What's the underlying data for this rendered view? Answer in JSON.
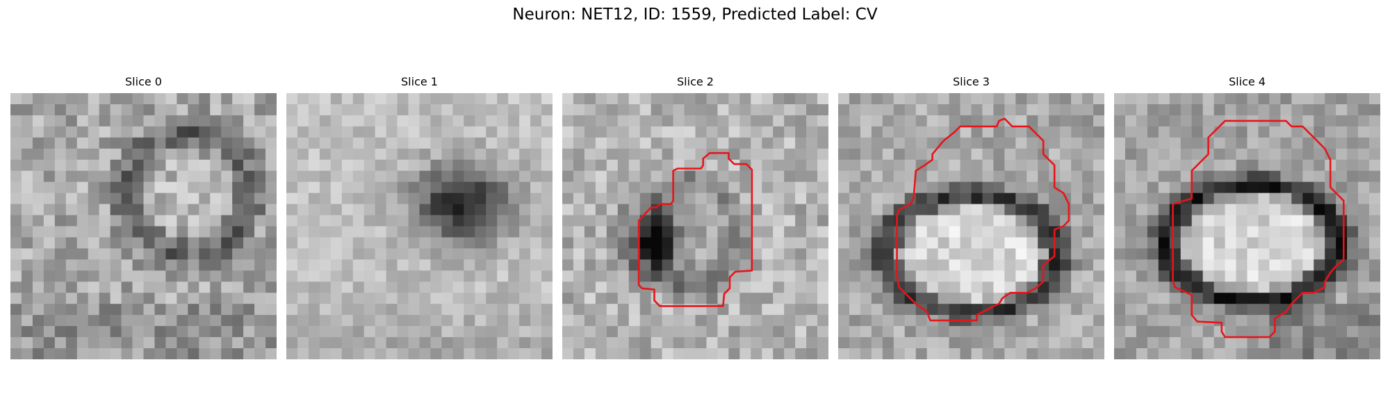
{
  "figure": {
    "title": "Neuron: NET12, ID: 1559, Predicted Label: CV"
  },
  "panels": [
    {
      "title": "Slice 0",
      "has_contour": false
    },
    {
      "title": "Slice 1",
      "has_contour": true
    },
    {
      "title": "Slice 2",
      "has_contour": true
    },
    {
      "title": "Slice 3",
      "has_contour": true
    },
    {
      "title": "Slice 4",
      "has_contour": true
    }
  ],
  "colors": {
    "contour": "#e8141a",
    "background": "#ffffff"
  }
}
